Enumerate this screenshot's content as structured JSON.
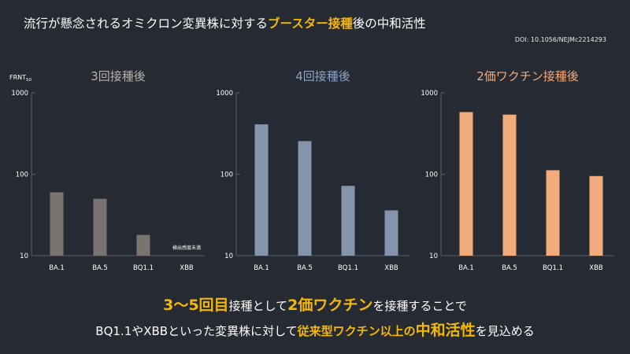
{
  "header": {
    "title_prefix": "流行が懸念されるオミクロン変異株に対する",
    "title_highlight": "ブースター接種",
    "title_suffix": "後の中和活性",
    "doi": "DOI: 10.1056/NEJMc2214293"
  },
  "chart_data": [
    {
      "type": "bar",
      "title": "3回接種後",
      "ylabel": "FRNT50",
      "yscale": "log",
      "ylim": [
        10,
        1000
      ],
      "yticks": [
        "1000",
        "100",
        "10"
      ],
      "categories": [
        "BA.1",
        "BA.5",
        "BQ1.1",
        "XBB"
      ],
      "values": [
        60,
        50,
        18,
        null
      ],
      "annotation": "検出感度未満",
      "color": "#7a7470",
      "title_color": "#b8b2ae"
    },
    {
      "type": "bar",
      "title": "4回接種後",
      "ylabel": "",
      "yscale": "log",
      "ylim": [
        10,
        1000
      ],
      "yticks": [
        "1000",
        "100",
        "10"
      ],
      "categories": [
        "BA.1",
        "BA.5",
        "BQ1.1",
        "XBB"
      ],
      "values": [
        410,
        255,
        72,
        36
      ],
      "annotation": "",
      "color": "#8494ad",
      "title_color": "#8fa3c4"
    },
    {
      "type": "bar",
      "title": "2価ワクチン接種後",
      "ylabel": "",
      "yscale": "log",
      "ylim": [
        10,
        1000
      ],
      "yticks": [
        "1000",
        "100",
        "10"
      ],
      "categories": [
        "BA.1",
        "BA.5",
        "BQ1.1",
        "XBB"
      ],
      "values": [
        580,
        540,
        112,
        95
      ],
      "annotation": "",
      "color": "#f2ab7a",
      "title_color": "#f2ab7a"
    }
  ],
  "footer": {
    "line1_a": "3～5回目",
    "line1_b": "接種として",
    "line1_c": "2価ワクチン",
    "line1_d": "を接種することで",
    "line2_a": "BQ1.1やXBBといった変異株に対して",
    "line2_b": "従来型ワクチン以上の",
    "line2_c": "中和活性",
    "line2_d": "を見込める"
  }
}
